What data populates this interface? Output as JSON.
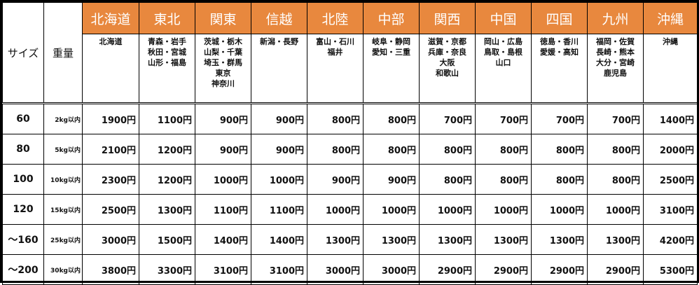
{
  "headers": {
    "size": "サイズ",
    "weight": "重量"
  },
  "regions": [
    {
      "name": "北海道",
      "prefectures": [
        "北海道"
      ]
    },
    {
      "name": "東北",
      "prefectures": [
        "青森・岩手",
        "秋田・宮城",
        "山形・福島"
      ]
    },
    {
      "name": "関東",
      "prefectures": [
        "茨城・栃木",
        "山梨・千葉",
        "埼玉・群馬",
        "東京",
        "神奈川"
      ]
    },
    {
      "name": "信越",
      "prefectures": [
        "新潟・長野"
      ]
    },
    {
      "name": "北陸",
      "prefectures": [
        "富山・石川",
        "福井"
      ]
    },
    {
      "name": "中部",
      "prefectures": [
        "岐阜・静岡",
        "愛知・三重"
      ]
    },
    {
      "name": "関西",
      "prefectures": [
        "滋賀・京都",
        "兵庫・奈良",
        "大阪",
        "和歌山"
      ]
    },
    {
      "name": "中国",
      "prefectures": [
        "岡山・広島",
        "鳥取・島根",
        "山口"
      ]
    },
    {
      "name": "四国",
      "prefectures": [
        "徳島・香川",
        "愛媛・高知"
      ]
    },
    {
      "name": "九州",
      "prefectures": [
        "福岡・佐賀",
        "長崎・熊本",
        "大分・宮崎",
        "鹿児島"
      ]
    },
    {
      "name": "沖縄",
      "prefectures": [
        "沖縄"
      ]
    }
  ],
  "rows": [
    {
      "size": "60",
      "weight": "2kg以内",
      "prices": [
        "1900円",
        "1100円",
        "900円",
        "900円",
        "800円",
        "800円",
        "700円",
        "700円",
        "700円",
        "700円",
        "1400円"
      ]
    },
    {
      "size": "80",
      "weight": "5kg以内",
      "prices": [
        "2100円",
        "1200円",
        "900円",
        "900円",
        "800円",
        "800円",
        "800円",
        "800円",
        "800円",
        "800円",
        "2000円"
      ]
    },
    {
      "size": "100",
      "weight": "10kg以内",
      "prices": [
        "2300円",
        "1200円",
        "1000円",
        "1000円",
        "900円",
        "900円",
        "800円",
        "800円",
        "800円",
        "800円",
        "2500円"
      ]
    },
    {
      "size": "120",
      "weight": "15kg以内",
      "prices": [
        "2500円",
        "1300円",
        "1100円",
        "1100円",
        "1000円",
        "1000円",
        "1000円",
        "1000円",
        "1000円",
        "1000円",
        "3100円"
      ]
    },
    {
      "size": "～160",
      "weight": "25kg以内",
      "prices": [
        "3000円",
        "1500円",
        "1400円",
        "1400円",
        "1300円",
        "1300円",
        "1300円",
        "1300円",
        "1300円",
        "1300円",
        "4200円"
      ]
    },
    {
      "size": "～200",
      "weight": "30kg以内",
      "prices": [
        "3800円",
        "3300円",
        "3100円",
        "3100円",
        "3000円",
        "3000円",
        "2900円",
        "2900円",
        "2900円",
        "2900円",
        "5300円"
      ]
    }
  ],
  "colors": {
    "header_bg": "#E8883E",
    "header_text": "#FFFFFF"
  }
}
